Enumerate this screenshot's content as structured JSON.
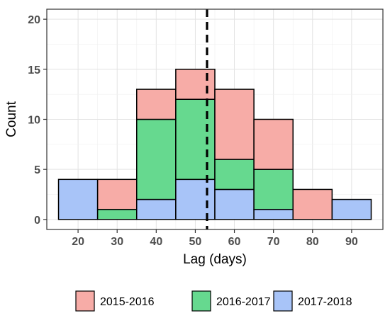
{
  "chart_data": {
    "type": "bar",
    "stacked": true,
    "bin_width": 10,
    "categories": [
      20,
      30,
      40,
      50,
      60,
      70,
      80,
      90
    ],
    "series": [
      {
        "name": "2017-2018",
        "color": "#a8c4f8",
        "values": [
          4,
          0,
          2,
          4,
          3,
          1,
          0,
          2
        ]
      },
      {
        "name": "2016-2017",
        "color": "#66d98f",
        "values": [
          0,
          1,
          8,
          8,
          3,
          4,
          0,
          0
        ]
      },
      {
        "name": "2015-2016",
        "color": "#f7aca7",
        "values": [
          0,
          3,
          3,
          3,
          7,
          5,
          3,
          0
        ]
      }
    ],
    "xlabel": "Lag (days)",
    "ylabel": "Count",
    "xlim": [
      12,
      98
    ],
    "ylim": [
      -1,
      21
    ],
    "xticks": [
      20,
      30,
      40,
      50,
      60,
      70,
      80,
      90
    ],
    "yticks": [
      0,
      5,
      10,
      15,
      20
    ],
    "vline": {
      "x": 53,
      "style": "dashed",
      "color": "#000000"
    },
    "grid": true,
    "legend_position": "bottom",
    "legend_order": [
      "2015-2016",
      "2016-2017",
      "2017-2018"
    ]
  }
}
